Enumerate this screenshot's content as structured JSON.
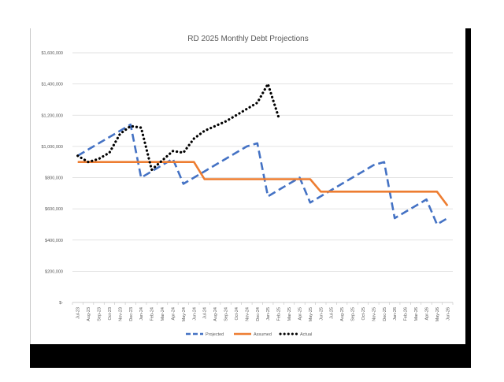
{
  "chart_data": {
    "type": "line",
    "title": "RD 2025 Monthly Debt Projections",
    "xlabel": "",
    "ylabel": "",
    "ylim": [
      0,
      1600000
    ],
    "y_ticks": [
      "$-",
      "$200,000",
      "$400,000",
      "$600,000",
      "$800,000",
      "$1,000,000",
      "$1,200,000",
      "$1,400,000",
      "$1,600,000"
    ],
    "grid": true,
    "legend_position": "bottom",
    "categories": [
      "Jul-23",
      "Aug-23",
      "Sep-23",
      "Oct-23",
      "Nov-23",
      "Dec-23",
      "Jan-24",
      "Feb-24",
      "Mar-24",
      "Apr-24",
      "May-24",
      "Jun-24",
      "Jul-24",
      "Aug-24",
      "Sep-24",
      "Oct-24",
      "Nov-24",
      "Dec-24",
      "Jan-25",
      "Feb-25",
      "Mar-25",
      "Apr-25",
      "May-25",
      "Jun-25",
      "Jul-25",
      "Aug-25",
      "Sep-25",
      "Oct-25",
      "Nov-25",
      "Dec-25",
      "Jan-26",
      "Feb-26",
      "Mar-26",
      "Apr-26",
      "May-26",
      "Jun-26"
    ],
    "series": [
      {
        "name": "Projected",
        "color": "#4472c4",
        "style": "dashed",
        "values": [
          940000,
          980000,
          1020000,
          1060000,
          1100000,
          1140000,
          800000,
          840000,
          880000,
          920000,
          760000,
          800000,
          840000,
          880000,
          920000,
          960000,
          1000000,
          1020000,
          680000,
          720000,
          760000,
          800000,
          640000,
          680000,
          720000,
          760000,
          800000,
          840000,
          880000,
          900000,
          540000,
          580000,
          620000,
          660000,
          500000,
          540000
        ]
      },
      {
        "name": "Assumed",
        "color": "#ed7d31",
        "style": "solid",
        "values": [
          900000,
          900000,
          900000,
          900000,
          900000,
          900000,
          900000,
          900000,
          900000,
          900000,
          900000,
          900000,
          790000,
          790000,
          790000,
          790000,
          790000,
          790000,
          790000,
          790000,
          790000,
          790000,
          790000,
          710000,
          710000,
          710000,
          710000,
          710000,
          710000,
          710000,
          710000,
          710000,
          710000,
          710000,
          710000,
          620000
        ]
      },
      {
        "name": "Actual",
        "color": "#000000",
        "style": "dotted",
        "values": [
          940000,
          900000,
          920000,
          960000,
          1080000,
          1130000,
          1120000,
          850000,
          910000,
          970000,
          960000,
          1050000,
          1100000,
          1130000,
          1160000,
          1200000,
          1240000,
          1280000,
          1400000,
          1190000,
          null,
          null,
          null,
          null,
          null,
          null,
          null,
          null,
          null,
          null,
          null,
          null,
          null,
          null,
          null,
          null
        ]
      }
    ]
  }
}
